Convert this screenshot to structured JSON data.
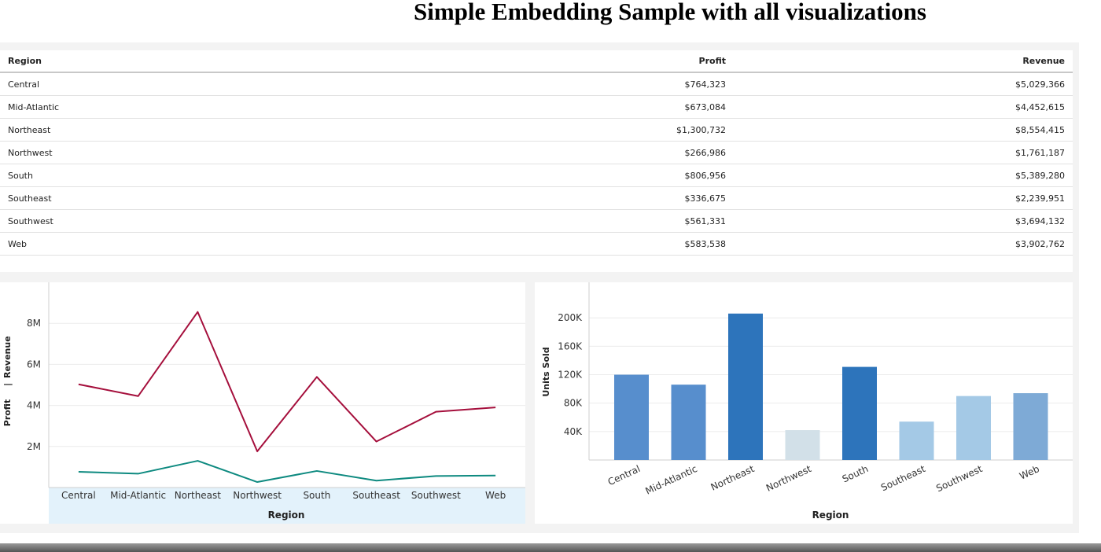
{
  "title": "Simple Embedding Sample with all visualizations",
  "table": {
    "headers": [
      "Region",
      "Profit",
      "Revenue"
    ],
    "rows": [
      [
        "Central",
        "$764,323",
        "$5,029,366"
      ],
      [
        "Mid-Atlantic",
        "$673,084",
        "$4,452,615"
      ],
      [
        "Northeast",
        "$1,300,732",
        "$8,554,415"
      ],
      [
        "Northwest",
        "$266,986",
        "$1,761,187"
      ],
      [
        "South",
        "$806,956",
        "$5,389,280"
      ],
      [
        "Southeast",
        "$336,675",
        "$2,239,951"
      ],
      [
        "Southwest",
        "$561,331",
        "$3,694,132"
      ],
      [
        "Web",
        "$583,538",
        "$3,902,762"
      ]
    ]
  },
  "chart_data": [
    {
      "type": "line",
      "categories": [
        "Central",
        "Mid-Atlantic",
        "Northeast",
        "Northwest",
        "South",
        "Southeast",
        "Southwest",
        "Web"
      ],
      "series": [
        {
          "name": "Revenue",
          "color": "#a50f3c",
          "values": [
            5029366,
            4452615,
            8554415,
            1761187,
            5389280,
            2239951,
            3694132,
            3902762
          ]
        },
        {
          "name": "Profit",
          "color": "#0e8a80",
          "values": [
            764323,
            673084,
            1300732,
            266986,
            806956,
            336675,
            561331,
            583538
          ]
        }
      ],
      "xlabel": "Region",
      "ylabel_parts": [
        "Profit",
        "|",
        "Revenue"
      ],
      "ylim": [
        0,
        10000000
      ],
      "yticks": [
        2000000,
        4000000,
        6000000,
        8000000
      ],
      "ytick_labels": [
        "2M",
        "4M",
        "6M",
        "8M"
      ],
      "grid": true,
      "x_axis_highlight": "#e3f2fb"
    },
    {
      "type": "bar",
      "categories": [
        "Central",
        "Mid-Atlantic",
        "Northeast",
        "Northwest",
        "South",
        "Southeast",
        "Southwest",
        "Web"
      ],
      "values": [
        120000,
        106000,
        206000,
        42000,
        131000,
        54000,
        90000,
        94000
      ],
      "colors": [
        "#578ecd",
        "#578ecd",
        "#2d74bb",
        "#d2e0e8",
        "#2d74bb",
        "#a4c9e6",
        "#a4c9e6",
        "#7eaad6"
      ],
      "xlabel": "Region",
      "ylabel": "Units Sold",
      "ylim": [
        0,
        250000
      ],
      "yticks": [
        40000,
        80000,
        120000,
        160000,
        200000
      ],
      "ytick_labels": [
        "40K",
        "80K",
        "120K",
        "160K",
        "200K"
      ],
      "grid": true
    }
  ]
}
